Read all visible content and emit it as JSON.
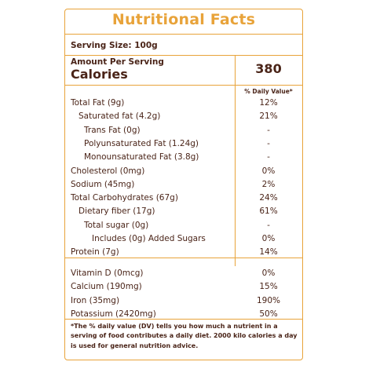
{
  "title": "Nutritional Facts",
  "serving_size": "Serving Size: 100g",
  "amount_per_serving": "Amount Per Serving",
  "calories_label": "Calories",
  "calories_value": "380",
  "daily_value_header": "% Daily Value*",
  "nutrients": [
    {
      "label": "Total Fat (9g)",
      "value": "12%",
      "indent": 0
    },
    {
      "label": "Saturated fat (4.2g)",
      "value": "21%",
      "indent": 1
    },
    {
      "label": "Trans Fat (0g)",
      "value": "-",
      "indent": 2
    },
    {
      "label": "Polyunsaturated Fat (1.24g)",
      "value": "-",
      "indent": 2
    },
    {
      "label": "Monounsaturated Fat (3.8g)",
      "value": "-",
      "indent": 2
    },
    {
      "label": "Cholesterol (0mg)",
      "value": "0%",
      "indent": 0
    },
    {
      "label": "Sodium (45mg)",
      "value": "2%",
      "indent": 0
    },
    {
      "label": "Total Carbohydrates (67g)",
      "value": "24%",
      "indent": 0
    },
    {
      "label": "Dietary fiber (17g)",
      "value": "61%",
      "indent": 1
    },
    {
      "label": "Total sugar (0g)",
      "value": "-",
      "indent": 2
    },
    {
      "label": "Includes (0g) Added Sugars",
      "value": "0%",
      "indent": 3
    },
    {
      "label": "Protein (7g)",
      "value": "14%",
      "indent": 0
    }
  ],
  "minerals": [
    {
      "label": "Vitamin D (0mcg)",
      "value": "0%"
    },
    {
      "label": "Calcium (190mg)",
      "value": "15%"
    },
    {
      "label": "Iron (35mg)",
      "value": "190%"
    },
    {
      "label": "Potassium (2420mg)",
      "value": "50%"
    }
  ],
  "footnote": "*The % daily value (DV) tells you how much a nutrient in a serving of food contributes a daily diet. 2000 kilo calories a day is used for general nutrition advice.",
  "colors": {
    "accent": "#e8a33a",
    "text": "#4a2418"
  }
}
